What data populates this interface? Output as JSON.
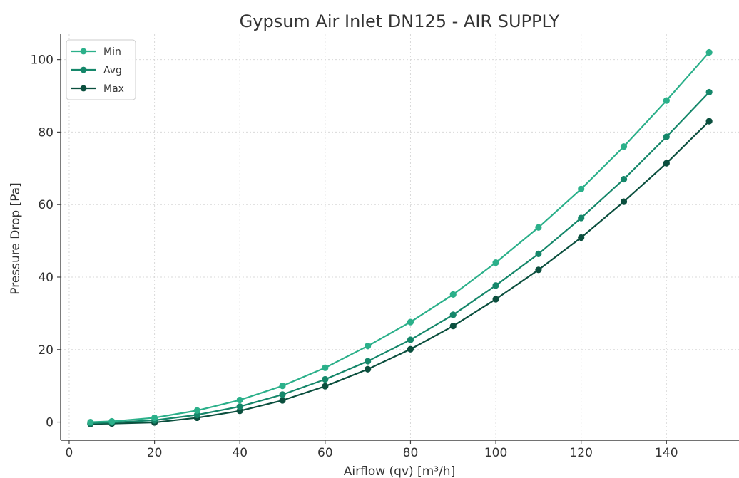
{
  "chart_data": {
    "type": "line",
    "title": "Gypsum Air Inlet DN125 - AIR SUPPLY",
    "xlabel": "Airflow (qv) [m³/h]",
    "ylabel": "Pressure Drop [Pa]",
    "xlim": [
      -2,
      157
    ],
    "ylim": [
      -5,
      107
    ],
    "xticks": [
      0,
      20,
      40,
      60,
      80,
      100,
      120,
      140
    ],
    "yticks": [
      0,
      20,
      40,
      60,
      80,
      100
    ],
    "grid": true,
    "legend_position": "top-left",
    "x": [
      5,
      10,
      20,
      30,
      40,
      50,
      60,
      70,
      80,
      90,
      100,
      110,
      120,
      130,
      140,
      150
    ],
    "series": [
      {
        "name": "Min",
        "color": "#2bb08a",
        "values": [
          0.0,
          0.2,
          1.2,
          3.2,
          6.1,
          10.0,
          15.0,
          21.0,
          27.6,
          35.2,
          44.0,
          53.7,
          64.3,
          76.0,
          88.7,
          102.0
        ]
      },
      {
        "name": "Avg",
        "color": "#15876a",
        "values": [
          -0.3,
          -0.1,
          0.5,
          2.0,
          4.3,
          7.6,
          11.8,
          16.8,
          22.7,
          29.6,
          37.7,
          46.4,
          56.3,
          67.0,
          78.7,
          91.0
        ]
      },
      {
        "name": "Max",
        "color": "#0b4f3e",
        "values": [
          -0.5,
          -0.4,
          -0.1,
          1.2,
          3.1,
          6.0,
          9.9,
          14.6,
          20.1,
          26.5,
          33.9,
          42.0,
          50.9,
          60.8,
          71.4,
          83.0
        ]
      }
    ]
  }
}
